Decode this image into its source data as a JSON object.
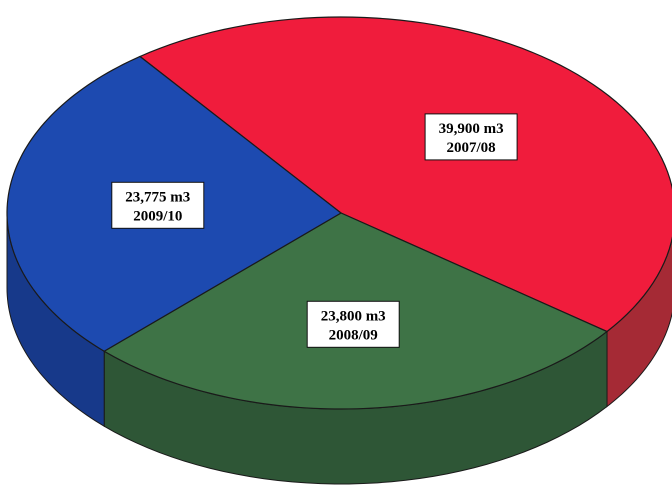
{
  "chart_data": {
    "type": "pie",
    "variant": "3d",
    "unit": "m3",
    "slices": [
      {
        "category": "2007/08",
        "value": 39900,
        "label": "39,900 m3",
        "color": "#f01c3c",
        "side_color": "#a52a35"
      },
      {
        "category": "2008/09",
        "value": 23800,
        "label": "23,800 m3",
        "color": "#3e7346",
        "side_color": "#2e5636"
      },
      {
        "category": "2009/10",
        "value": 23775,
        "label": "23,775 m3",
        "color": "#1d4ab0",
        "side_color": "#17398a"
      }
    ],
    "legend": "none",
    "grid": false
  }
}
